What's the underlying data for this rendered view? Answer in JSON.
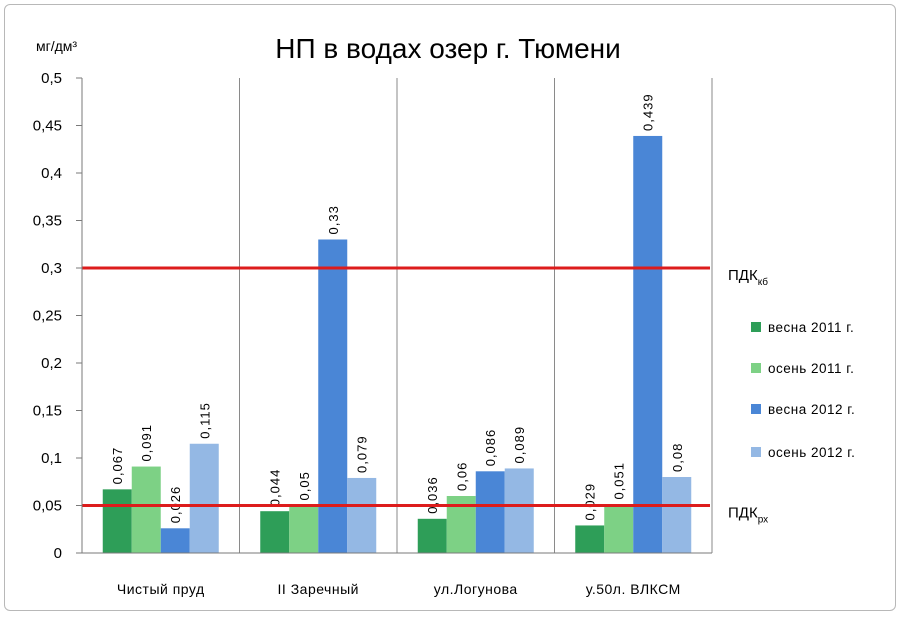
{
  "chart_data": {
    "type": "bar",
    "title": "НП в водах озер г. Тюмени",
    "ylabel": "мг/дм³",
    "ylim": [
      0,
      0.5
    ],
    "yticks": [
      "0",
      "0,05",
      "0,1",
      "0,15",
      "0,2",
      "0,25",
      "0,3",
      "0,35",
      "0,4",
      "0,45",
      "0,5"
    ],
    "categories": [
      "Чистый пруд",
      "II Заречный",
      "ул.Логунова",
      "у.50л. ВЛКСМ"
    ],
    "series": [
      {
        "name": "весна 2011 г.",
        "color": "#2e9e58",
        "values": [
          0.067,
          0.044,
          0.036,
          0.029
        ],
        "labels": [
          "0,067",
          "0,044",
          "0,036",
          "0,029"
        ]
      },
      {
        "name": "осень 2011 г.",
        "color": "#7dd185",
        "values": [
          0.091,
          0.05,
          0.06,
          0.051
        ],
        "labels": [
          "0,091",
          "0,05",
          "0,06",
          "0,051"
        ]
      },
      {
        "name": "весна 2012 г.",
        "color": "#4a86d6",
        "values": [
          0.026,
          0.33,
          0.086,
          0.439
        ],
        "labels": [
          "0,026",
          "0,33",
          "0,086",
          "0,439"
        ]
      },
      {
        "name": "осень 2012 г.",
        "color": "#94b8e4",
        "values": [
          0.115,
          0.079,
          0.089,
          0.08
        ],
        "labels": [
          "0,115",
          "0,079",
          "0,089",
          "0,08"
        ]
      }
    ],
    "reference_lines": [
      {
        "value": 0.3,
        "label": "ПДК",
        "sub": "кб",
        "color": "#dd1c1c"
      },
      {
        "value": 0.05,
        "label": "ПДК",
        "sub": "рх",
        "color": "#dd1c1c"
      }
    ],
    "grid": "vertical category separators",
    "legend_position": "right"
  }
}
